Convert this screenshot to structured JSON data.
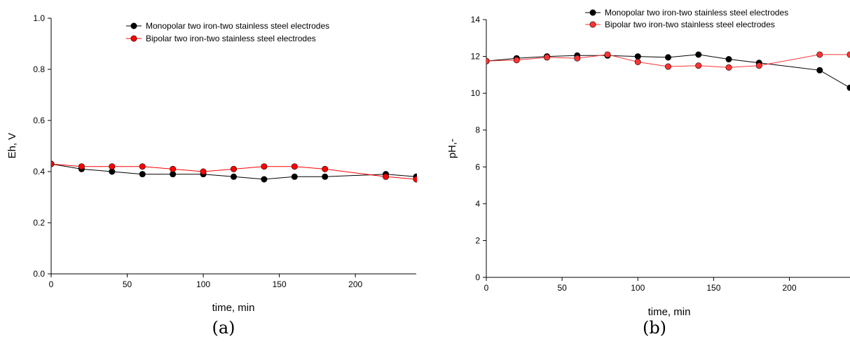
{
  "chart_data": [
    {
      "type": "line",
      "panel_label": "(a)",
      "title": "",
      "xlabel": "time, min",
      "ylabel": "Eh, V",
      "xlim": [
        0,
        240
      ],
      "ylim": [
        0,
        1.0
      ],
      "x_ticks": [
        0,
        50,
        100,
        150,
        200
      ],
      "x_tick_labels": [
        "0",
        "50",
        "100",
        "150",
        "200"
      ],
      "y_ticks": [
        0,
        0.2,
        0.4,
        0.6,
        0.8,
        1.0
      ],
      "y_tick_labels": [
        "0.0",
        "0.2",
        "0.4",
        "0.6",
        "0.8",
        "1.0"
      ],
      "grid": false,
      "legend_position": "top-center",
      "x": [
        0,
        20,
        40,
        60,
        80,
        100,
        120,
        140,
        160,
        180,
        220,
        240
      ],
      "series": [
        {
          "name": "Monopolar two iron-two stainless steel electrodes",
          "color": "#000000",
          "values": [
            0.43,
            0.41,
            0.4,
            0.39,
            0.39,
            0.39,
            0.38,
            0.37,
            0.38,
            0.38,
            0.39,
            0.38
          ]
        },
        {
          "name": "Bipolar two iron-two stainless steel electrodes",
          "color": "#ff0000",
          "values": [
            0.43,
            0.42,
            0.42,
            0.42,
            0.41,
            0.4,
            0.41,
            0.42,
            0.42,
            0.41,
            0.38,
            0.37
          ]
        }
      ]
    },
    {
      "type": "line",
      "panel_label": "(b)",
      "title": "",
      "xlabel": "time, min",
      "ylabel": "pH,-",
      "xlim": [
        0,
        240
      ],
      "ylim": [
        0,
        14
      ],
      "x_ticks": [
        0,
        50,
        100,
        150,
        200
      ],
      "x_tick_labels": [
        "0",
        "50",
        "100",
        "150",
        "200"
      ],
      "y_ticks": [
        0,
        2,
        4,
        6,
        8,
        10,
        12,
        14
      ],
      "y_tick_labels": [
        "0",
        "2",
        "4",
        "6",
        "8",
        "10",
        "12",
        "14"
      ],
      "grid": false,
      "legend_position": "top-right",
      "x": [
        0,
        20,
        40,
        60,
        80,
        100,
        120,
        140,
        160,
        180,
        220,
        240
      ],
      "series": [
        {
          "name": "Monopolar two iron-two stainless steel electrodes",
          "color": "#000000",
          "values": [
            11.75,
            11.9,
            12.0,
            12.05,
            12.05,
            12.0,
            11.95,
            12.1,
            11.85,
            11.65,
            11.25,
            10.3
          ]
        },
        {
          "name": "Bipolar two iron-two stainless steel electrodes",
          "color": "#ff3333",
          "values": [
            11.75,
            11.8,
            11.95,
            11.9,
            12.1,
            11.7,
            11.45,
            11.5,
            11.4,
            11.5,
            12.1,
            12.1
          ]
        }
      ]
    }
  ]
}
